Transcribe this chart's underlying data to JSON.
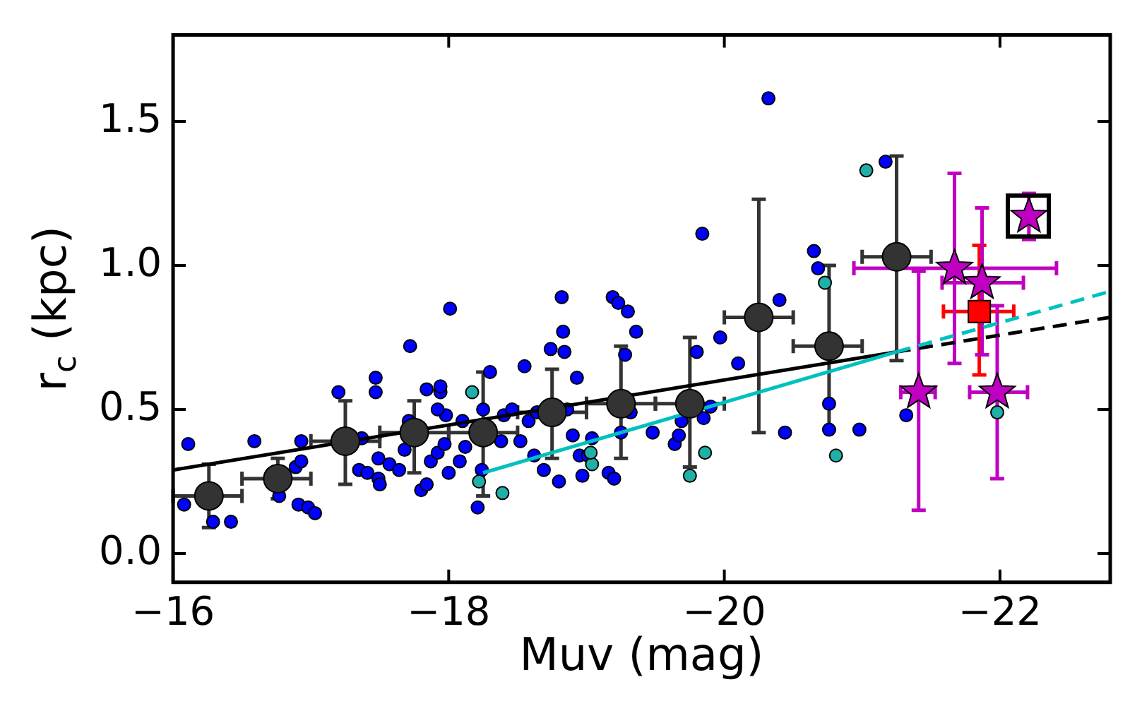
{
  "chart_data": {
    "type": "scatter",
    "xlabel": "Muv (mag)",
    "ylabel": "r$_{c}$ (kpc)",
    "xlim": [
      -16,
      -22.8
    ],
    "ylim": [
      -0.1,
      1.8
    ],
    "xticks": [
      {
        "value": -16,
        "label": "−16"
      },
      {
        "value": -18,
        "label": "−18"
      },
      {
        "value": -20,
        "label": "−20"
      },
      {
        "value": -22,
        "label": "−22"
      }
    ],
    "yticks": [
      {
        "value": 0,
        "label": "0.0"
      },
      {
        "value": 0.5,
        "label": "0.5"
      },
      {
        "value": 1,
        "label": "1.0"
      },
      {
        "value": 1.5,
        "label": "1.5"
      }
    ],
    "grid": false,
    "legend": false,
    "series": [
      {
        "marker": "circle",
        "color": "#0000ff",
        "x": [
          -16.11,
          -16.08,
          -16.29,
          -16.42,
          -16.59,
          -16.77,
          -16.93,
          -16.91,
          -16.98,
          -17.03,
          -16.89,
          -16.93,
          -17.2,
          -17.37,
          -17.47,
          -17.47,
          -17.35,
          -17.41,
          -17.49,
          -17.49,
          -17.5,
          -17.57,
          -17.64,
          -17.72,
          -17.71,
          -17.68,
          -17.8,
          -17.84,
          -17.84,
          -17.87,
          -17.92,
          -17.97,
          -17.94,
          -17.94,
          -17.98,
          -17.92,
          -18.01,
          -18,
          -18.08,
          -18.12,
          -18.1,
          -18.21,
          -18.24,
          -18.3,
          -18.25,
          -18.38,
          -18.4,
          -18.46,
          -18.55,
          -18.52,
          -18.58,
          -18.62,
          -18.64,
          -18.69,
          -18.74,
          -18.8,
          -18.82,
          -18.83,
          -18.84,
          -18.86,
          -18.9,
          -18.93,
          -18.95,
          -18.97,
          -19.01,
          -19.04,
          -19.16,
          -19.2,
          -19.19,
          -19.23,
          -19.3,
          -19.28,
          -19.25,
          -19.36,
          -19.32,
          -19.48,
          -19.64,
          -19.67,
          -19.69,
          -19.8,
          -19.84,
          -19.85,
          -19.9,
          -19.97,
          -20.1,
          -20.32,
          -20.4,
          -20.44,
          -20.65,
          -20.68,
          -20.76,
          -20.76,
          -20.98,
          -21.17,
          -21.32
        ],
        "values": [
          0.38,
          0.17,
          0.11,
          0.11,
          0.39,
          0.2,
          0.39,
          0.17,
          0.16,
          0.14,
          0.3,
          0.32,
          0.56,
          0.4,
          0.61,
          0.56,
          0.29,
          0.28,
          0.26,
          0.33,
          0.24,
          0.31,
          0.29,
          0.72,
          0.46,
          0.36,
          0.22,
          0.24,
          0.57,
          0.32,
          0.35,
          0.38,
          0.56,
          0.58,
          0.48,
          0.5,
          0.85,
          0.28,
          0.32,
          0.37,
          0.46,
          0.16,
          0.29,
          0.63,
          0.5,
          0.39,
          0.48,
          0.5,
          0.65,
          0.39,
          0.46,
          0.34,
          0.49,
          0.29,
          0.71,
          0.25,
          0.89,
          0.77,
          0.7,
          0.5,
          0.41,
          0.61,
          0.34,
          0.27,
          0.34,
          0.4,
          0.28,
          0.26,
          0.89,
          0.87,
          0.84,
          0.69,
          0.42,
          0.77,
          0.49,
          0.42,
          0.38,
          0.41,
          0.46,
          0.7,
          1.11,
          0.47,
          0.51,
          0.75,
          0.66,
          1.58,
          0.88,
          0.42,
          1.05,
          0.99,
          0.52,
          0.43,
          0.43,
          1.36,
          0.48
        ]
      },
      {
        "marker": "circle",
        "color": "#20b0a8",
        "x": [
          -18.17,
          -18.22,
          -18.39,
          -19.04,
          -19.03,
          -19.75,
          -19.86,
          -20.73,
          -20.81,
          -21.03,
          -21.98
        ],
        "values": [
          0.56,
          0.25,
          0.21,
          0.31,
          0.35,
          0.27,
          0.35,
          0.94,
          0.34,
          1.33,
          0.49
        ]
      },
      {
        "type": "line",
        "marker": "none",
        "line_style": "solid",
        "color": "#000000",
        "x": [
          -16,
          -21.25
        ],
        "values": [
          0.29,
          0.7
        ]
      },
      {
        "type": "line",
        "marker": "none",
        "line_style": "dashed",
        "color": "#000000",
        "x": [
          -21.25,
          -22.8
        ],
        "values": [
          0.7,
          0.82
        ]
      },
      {
        "type": "line",
        "marker": "none",
        "line_style": "solid",
        "color": "#00c0c0",
        "x": [
          -18.25,
          -21.25
        ],
        "values": [
          0.28,
          0.7
        ]
      },
      {
        "type": "line",
        "marker": "none",
        "line_style": "dashed",
        "color": "#00c0c0",
        "x": [
          -21.25,
          -22.8
        ],
        "values": [
          0.7,
          0.91
        ]
      },
      {
        "marker": "circle",
        "color": "#333333",
        "x": [
          -16.26,
          -16.76,
          -17.25,
          -17.75,
          -18.25,
          -18.75,
          -19.25,
          -19.75,
          -20.25,
          -20.76,
          -21.25
        ],
        "values": [
          0.2,
          0.26,
          0.39,
          0.42,
          0.42,
          0.49,
          0.52,
          0.52,
          0.82,
          0.72,
          1.03
        ],
        "errors": [
          [
            0.09,
            0.31
          ],
          [
            0.19,
            0.33
          ],
          [
            0.24,
            0.53
          ],
          [
            0.28,
            0.53
          ],
          [
            0.2,
            0.63
          ],
          [
            0.33,
            0.64
          ],
          [
            0.33,
            0.72
          ],
          [
            0.3,
            0.75
          ],
          [
            0.42,
            1.23
          ],
          [
            0.43,
            1
          ],
          [
            0.67,
            1.38
          ]
        ],
        "xerrors": [
          [
            -16,
            -16.5
          ],
          [
            -16.5,
            -17
          ],
          [
            -17,
            -17.5
          ],
          [
            -17.5,
            -18
          ],
          [
            -18,
            -18.5
          ],
          [
            -18.5,
            -19
          ],
          [
            -19,
            -19.5
          ],
          [
            -19.5,
            -20
          ],
          [
            -20,
            -20.5
          ],
          [
            -20.5,
            -21
          ],
          [
            -21,
            -21.5
          ]
        ]
      },
      {
        "marker": "square",
        "color": "#ff0000",
        "x": [
          -21.85
        ],
        "values": [
          0.84
        ],
        "errors": [
          [
            0.62,
            1.07
          ]
        ],
        "xerrors": [
          [
            -21.59,
            -22.1
          ]
        ]
      },
      {
        "marker": "star",
        "color": "#c000c0",
        "x": [
          -21.41,
          -21.67,
          -21.87,
          -21.98
        ],
        "values": [
          0.56,
          0.99,
          0.94,
          0.56
        ],
        "errors": [
          [
            0.15,
            0.98
          ],
          [
            0.66,
            1.32
          ],
          [
            0.69,
            1.2
          ],
          [
            0.26,
            0.86
          ]
        ],
        "xerrors": [
          [
            -21.28,
            -21.53
          ],
          [
            -20.94,
            -22.41
          ],
          [
            -21.58,
            -22.17
          ],
          [
            -21.78,
            -22.2
          ]
        ]
      },
      {
        "marker": "star",
        "color": "#c000c0",
        "x": [
          -22.21
        ],
        "values": [
          1.17
        ],
        "errors": [
          [
            1.09,
            1.25
          ]
        ]
      }
    ]
  }
}
